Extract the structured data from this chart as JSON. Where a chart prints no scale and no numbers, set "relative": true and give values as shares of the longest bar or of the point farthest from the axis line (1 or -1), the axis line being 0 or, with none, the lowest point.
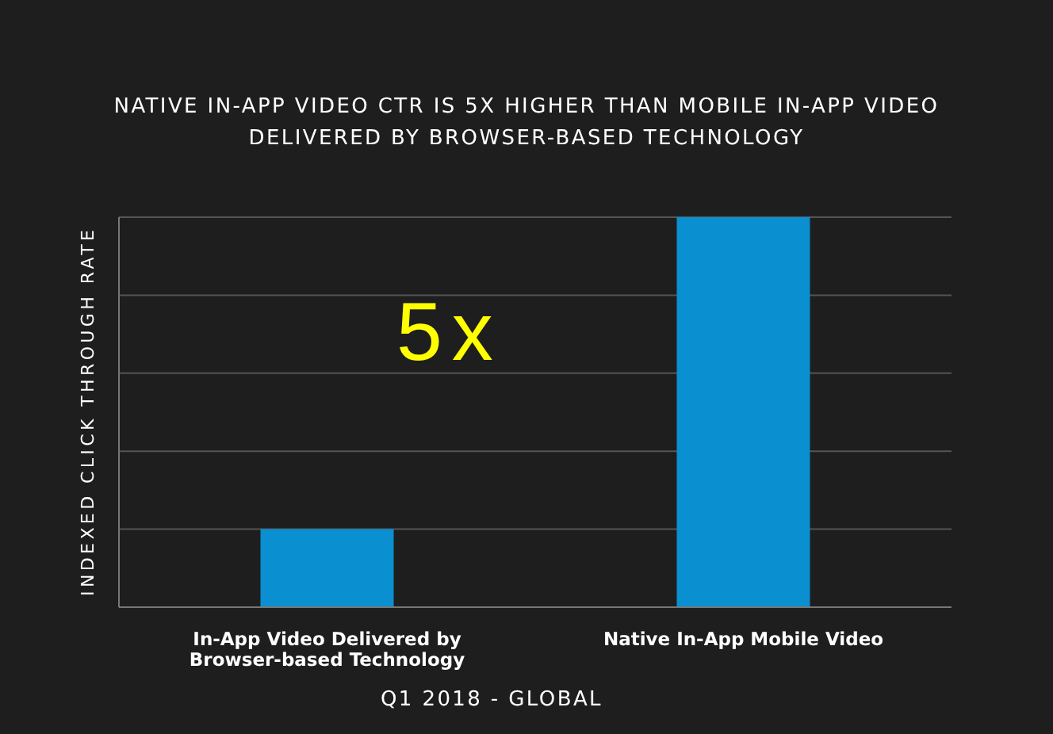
{
  "chart_data": {
    "type": "bar",
    "title": "NATIVE IN-APP VIDEO CTR IS 5X HIGHER THAN MOBILE IN-APP VIDEO DELIVERED BY BROWSER-BASED TECHNOLOGY",
    "xlabel": "Q1 2018 - GLOBAL",
    "ylabel": "INDEXED CLICK THROUGH RATE",
    "categories": [
      "In-App Video Delivered by Browser-based Technology",
      "Native In-App Mobile Video"
    ],
    "values": [
      0.2,
      1
    ],
    "color": "#0a8fd1",
    "relative": true,
    "grid": "y",
    "annotations": [
      "5x"
    ]
  }
}
